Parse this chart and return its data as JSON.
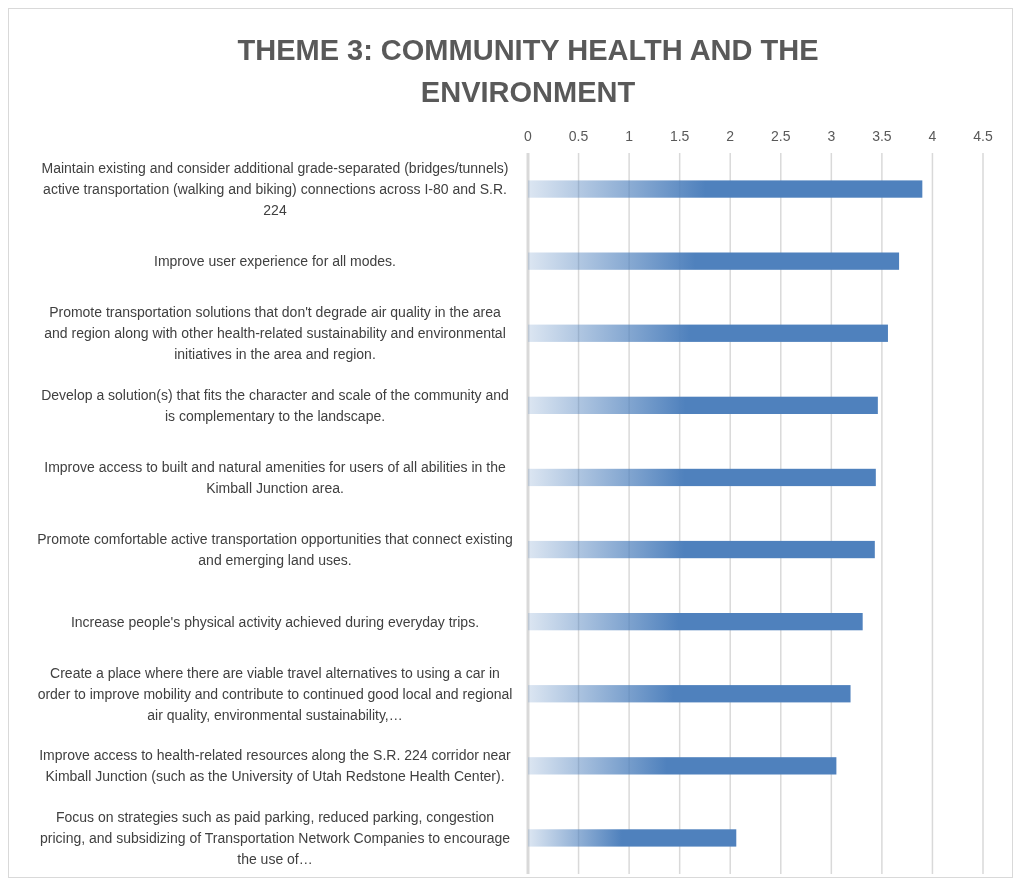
{
  "chart_data": {
    "type": "bar",
    "orientation": "horizontal",
    "title": "THEME 3: COMMUNITY HEALTH AND THE ENVIRONMENT",
    "categories": [
      "Maintain existing and consider additional grade-separated (bridges/tunnels) active transportation (walking and biking) connections across I-80 and S.R. 224",
      "Improve user experience for all modes.",
      "Promote transportation solutions that don't degrade air quality in the area and region along with other health-related sustainability and environmental initiatives in the area and region.",
      "Develop a solution(s) that fits the character and scale of the community and is complementary to the landscape.",
      "Improve access to built and natural amenities for users of all abilities in the Kimball Junction area.",
      "Promote comfortable active transportation opportunities that connect existing and emerging land uses.",
      "Increase people's physical activity achieved during everyday trips.",
      "Create a place where there are viable travel alternatives to using a car in order to improve mobility and contribute to continued good local and regional air quality, environmental sustainability,…",
      "Improve access to health-related resources along the S.R. 224 corridor near Kimball Junction (such as the University of Utah Redstone Health Center).",
      "Focus on strategies such as paid parking, reduced parking, congestion pricing, and subsidizing of Transportation Network Companies to encourage the use of…"
    ],
    "values": [
      3.9,
      3.67,
      3.56,
      3.46,
      3.44,
      3.43,
      3.31,
      3.19,
      3.05,
      2.06
    ],
    "color": "#4f81bd",
    "xlim": [
      0,
      4.5
    ],
    "xticks": [
      0,
      0.5,
      1,
      1.5,
      2,
      2.5,
      3,
      3.5,
      4,
      4.5
    ],
    "grid": "x"
  }
}
